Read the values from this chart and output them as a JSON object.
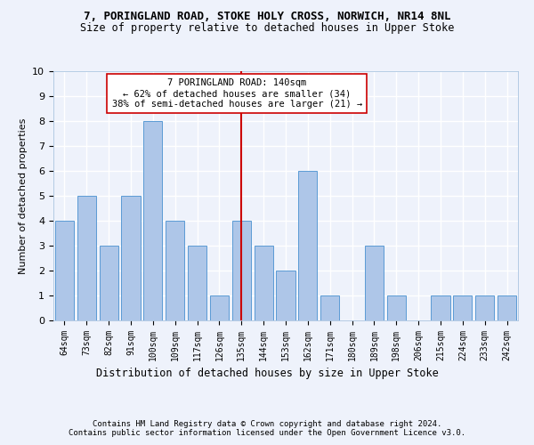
{
  "title_line1": "7, PORINGLAND ROAD, STOKE HOLY CROSS, NORWICH, NR14 8NL",
  "title_line2": "Size of property relative to detached houses in Upper Stoke",
  "xlabel": "Distribution of detached houses by size in Upper Stoke",
  "ylabel": "Number of detached properties",
  "categories": [
    "64sqm",
    "73sqm",
    "82sqm",
    "91sqm",
    "100sqm",
    "109sqm",
    "117sqm",
    "126sqm",
    "135sqm",
    "144sqm",
    "153sqm",
    "162sqm",
    "171sqm",
    "180sqm",
    "189sqm",
    "198sqm",
    "206sqm",
    "215sqm",
    "224sqm",
    "233sqm",
    "242sqm"
  ],
  "values": [
    4,
    5,
    3,
    5,
    8,
    4,
    3,
    1,
    4,
    3,
    2,
    6,
    1,
    0,
    3,
    1,
    0,
    1,
    1,
    1,
    1
  ],
  "bar_color": "#aec6e8",
  "bar_edge_color": "#5b9bd5",
  "highlight_index": 8,
  "highlight_color": "#cc0000",
  "ylim": [
    0,
    10
  ],
  "yticks": [
    0,
    1,
    2,
    3,
    4,
    5,
    6,
    7,
    8,
    9,
    10
  ],
  "annotation_text": "7 PORINGLAND ROAD: 140sqm\n← 62% of detached houses are smaller (34)\n38% of semi-detached houses are larger (21) →",
  "footer_line1": "Contains HM Land Registry data © Crown copyright and database right 2024.",
  "footer_line2": "Contains public sector information licensed under the Open Government Licence v3.0.",
  "background_color": "#eef2fb",
  "grid_color": "#ffffff",
  "title_fontsize": 9,
  "subtitle_fontsize": 8.5,
  "ylabel_fontsize": 8,
  "xlabel_fontsize": 8.5,
  "tick_fontsize": 7,
  "annotation_fontsize": 7.5,
  "footer_fontsize": 6.5
}
